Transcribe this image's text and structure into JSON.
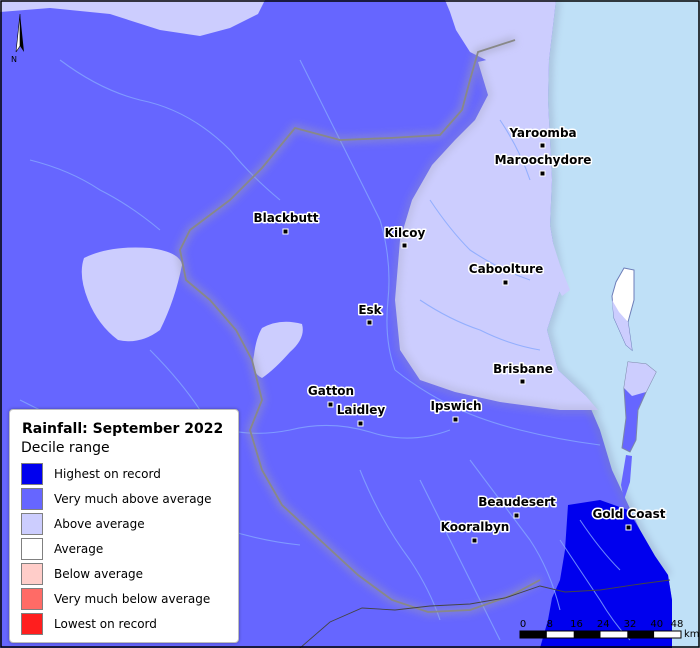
{
  "map": {
    "colors": {
      "ocean": "#bfe0f7",
      "highest_on_record": "#0000ee",
      "very_much_above_average": "#6666ff",
      "above_average": "#cccdfe",
      "average": "#ffffff",
      "river": "#86a8ff",
      "catchment_border": "#888888"
    },
    "towns": [
      {
        "name": "Yaroomba"
      },
      {
        "name": "Maroochydore"
      },
      {
        "name": "Blackbutt"
      },
      {
        "name": "Kilcoy"
      },
      {
        "name": "Caboolture"
      },
      {
        "name": "Esk"
      },
      {
        "name": "Brisbane"
      },
      {
        "name": "Gatton"
      },
      {
        "name": "Laidley"
      },
      {
        "name": "Ipswich"
      },
      {
        "name": "Beaudesert"
      },
      {
        "name": "Gold Coast"
      },
      {
        "name": "Kooralbyn"
      }
    ],
    "north_arrow": {
      "label": "N",
      "icon": "north-arrow-icon"
    },
    "scale_bar": {
      "ticks": [
        "0",
        "8",
        "16",
        "24",
        "32",
        "40",
        "48"
      ],
      "unit": "km"
    }
  },
  "legend": {
    "title": "Rainfall: September 2022",
    "subtitle": "Decile range",
    "items": [
      {
        "label": "Highest on record",
        "color": "#0000ee"
      },
      {
        "label": "Very much above average",
        "color": "#6666ff"
      },
      {
        "label": "Above average",
        "color": "#cccdfe"
      },
      {
        "label": "Average",
        "color": "#ffffff"
      },
      {
        "label": "Below average",
        "color": "#ffcdc9"
      },
      {
        "label": "Very much below average",
        "color": "#ff6b66"
      },
      {
        "label": "Lowest on record",
        "color": "#ff1e1e"
      }
    ]
  }
}
